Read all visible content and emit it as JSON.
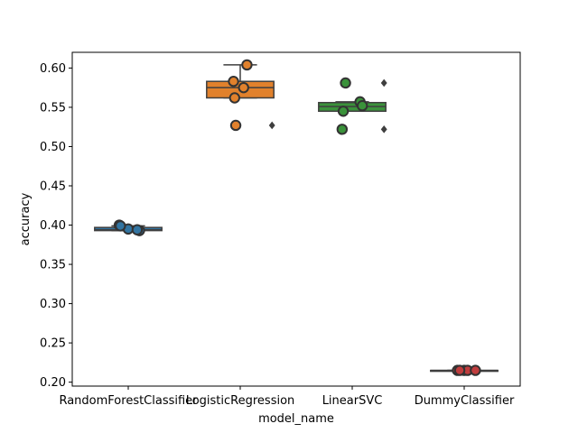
{
  "chart_data": {
    "type": "box",
    "xlabel": "model_name",
    "ylabel": "accuracy",
    "ylim": [
      0.195,
      0.62
    ],
    "yticks": [
      0.2,
      0.25,
      0.3,
      0.35,
      0.4,
      0.45,
      0.5,
      0.55,
      0.6
    ],
    "ytick_labels": [
      "0.20",
      "0.25",
      "0.30",
      "0.35",
      "0.40",
      "0.45",
      "0.50",
      "0.55",
      "0.60"
    ],
    "grid": false,
    "categories": [
      "RandomForestClassifier",
      "LogisticRegression",
      "LinearSVC",
      "DummyClassifier"
    ],
    "colors": [
      "#3274a1",
      "#e1812c",
      "#3a923a",
      "#c03d3e"
    ],
    "boxes": [
      {
        "min": 0.393,
        "q1": 0.393,
        "median": 0.394,
        "q3": 0.397,
        "max": 0.399,
        "outliers": []
      },
      {
        "min": 0.562,
        "q1": 0.562,
        "median": 0.575,
        "q3": 0.583,
        "max": 0.604,
        "outliers": [
          0.527
        ]
      },
      {
        "min": 0.545,
        "q1": 0.545,
        "median": 0.551,
        "q3": 0.556,
        "max": 0.557,
        "outliers": [
          0.581,
          0.522
        ]
      },
      {
        "min": 0.215,
        "q1": 0.215,
        "median": 0.215,
        "q3": 0.215,
        "max": 0.215,
        "outliers": []
      }
    ],
    "points": [
      {
        "category": 0,
        "values": [
          0.4,
          0.393,
          0.395,
          0.394,
          0.399
        ],
        "offsets": [
          -0.08,
          0.1,
          0.0,
          0.08,
          -0.07
        ]
      },
      {
        "category": 1,
        "values": [
          0.604,
          0.583,
          0.575,
          0.562,
          0.527
        ],
        "offsets": [
          0.06,
          -0.06,
          0.03,
          -0.05,
          -0.04
        ]
      },
      {
        "category": 2,
        "values": [
          0.581,
          0.557,
          0.552,
          0.545,
          0.522
        ],
        "offsets": [
          -0.06,
          0.07,
          0.09,
          -0.08,
          -0.09
        ]
      },
      {
        "category": 3,
        "values": [
          0.215,
          0.215,
          0.215,
          0.215,
          0.215
        ],
        "offsets": [
          -0.06,
          0.0,
          0.03,
          0.1,
          -0.04
        ]
      }
    ]
  }
}
